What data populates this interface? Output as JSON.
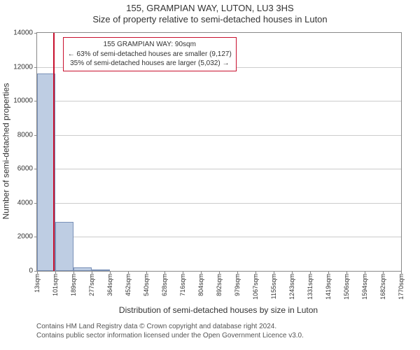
{
  "title1": "155, GRAMPIAN WAY, LUTON, LU3 3HS",
  "title2": "Size of property relative to semi-detached houses in Luton",
  "yaxis_label": "Number of semi-detached properties",
  "xaxis_label": "Distribution of semi-detached houses by size in Luton",
  "footer_line1": "Contains HM Land Registry data © Crown copyright and database right 2024.",
  "footer_line2": "Contains public sector information licensed under the Open Government Licence v3.0.",
  "chart": {
    "type": "histogram",
    "ymax": 14000,
    "yticks": [
      0,
      2000,
      4000,
      6000,
      8000,
      10000,
      12000,
      14000
    ],
    "xticks": [
      13,
      101,
      189,
      277,
      364,
      452,
      540,
      628,
      716,
      804,
      892,
      979,
      1067,
      1155,
      1243,
      1331,
      1419,
      1506,
      1594,
      1682,
      1770
    ],
    "xtick_suffix": "sqm",
    "bar_fill": "#becde3",
    "bar_stroke": "#7a91b8",
    "grid_color": "#cccccc",
    "border_color": "#888888",
    "refline_color": "#c8102e",
    "refline_x": 90,
    "bars": [
      {
        "x0": 13,
        "x1": 101,
        "y": 11600
      },
      {
        "x0": 101,
        "x1": 189,
        "y": 2900
      },
      {
        "x0": 189,
        "x1": 277,
        "y": 200
      },
      {
        "x0": 277,
        "x1": 364,
        "y": 60
      }
    ],
    "annotation": {
      "line1": "155 GRAMPIAN WAY: 90sqm",
      "line2": "← 63% of semi-detached houses are smaller (9,127)",
      "line3": "35% of semi-detached houses are larger (5,032) →"
    }
  }
}
